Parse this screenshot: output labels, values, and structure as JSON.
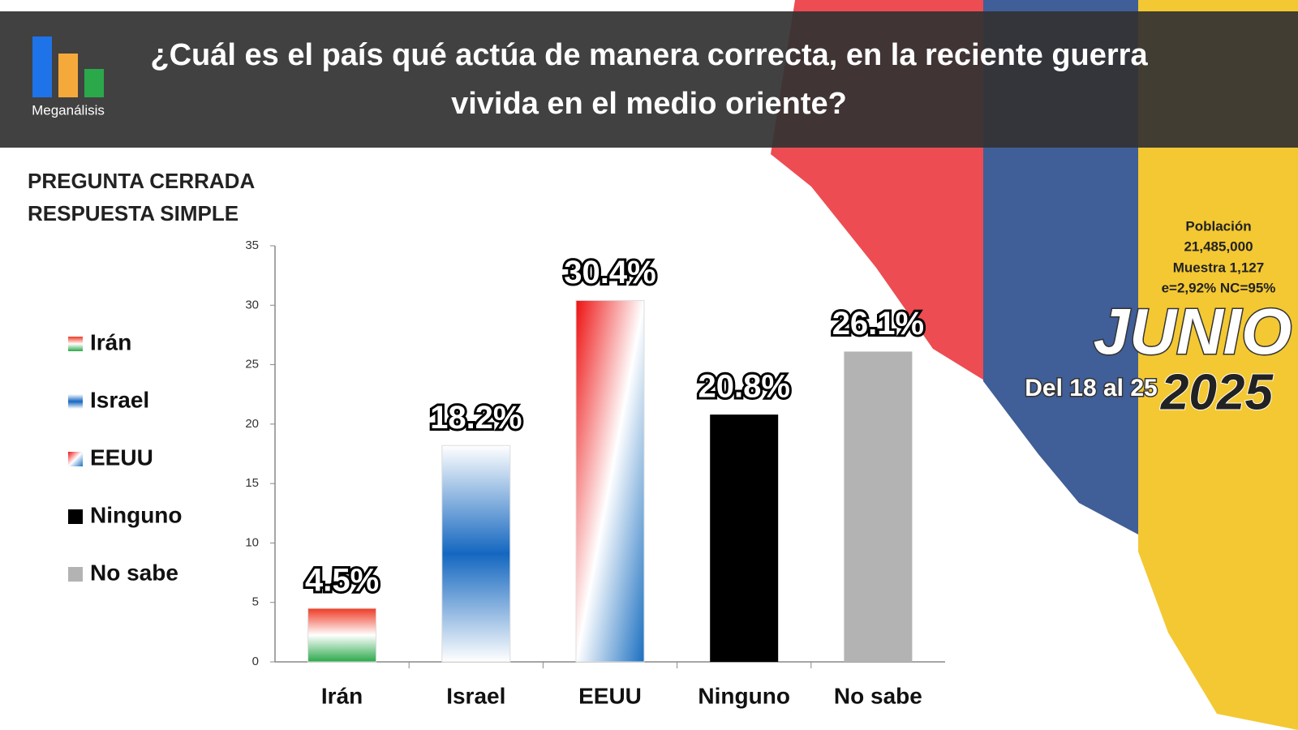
{
  "brand": "Meganálisis",
  "note_lines": [
    "PREGUNTA CERRADA",
    "RESPUESTA SIMPLE"
  ],
  "sample": {
    "lines": [
      "Población",
      "21,485,000",
      "Muestra 1,127",
      "e=2,92%  NC=95%"
    ],
    "month": "JUNIO",
    "dates": "Del 18 al 25",
    "year": "2025"
  },
  "chart_data": {
    "type": "bar",
    "title": "¿Cuál es el país qué actúa de manera correcta, en la reciente guerra vivida en el medio oriente?",
    "categories": [
      "Irán",
      "Israel",
      "EEUU",
      "Ninguno",
      "No sabe"
    ],
    "values": [
      4.5,
      18.2,
      30.4,
      20.8,
      26.1
    ],
    "value_labels": [
      "4.5%",
      "18.2%",
      "30.4%",
      "20.8%",
      "26.1%"
    ],
    "fills": [
      [
        "#2aa84a",
        "#ffffff",
        "#ee3a24"
      ],
      [
        "#ffffff",
        "#1467c0",
        "#ffffff"
      ],
      [
        "#ee1111",
        "#ffffff",
        "#1a6fc0"
      ],
      [
        "#000000"
      ],
      [
        "#b3b3b3"
      ]
    ],
    "ylim": [
      0,
      35
    ],
    "yticks": [
      0,
      5,
      10,
      15,
      20,
      25,
      30,
      35
    ],
    "legend": "left"
  }
}
